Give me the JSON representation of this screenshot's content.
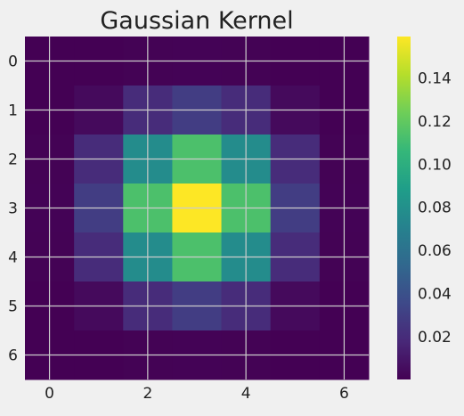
{
  "chart_data": {
    "type": "heatmap",
    "title": "Gaussian Kernel",
    "xlabel": "",
    "ylabel": "",
    "colormap": "viridis",
    "grid": true,
    "x_ticks": [
      "0",
      "2",
      "4",
      "6"
    ],
    "y_ticks": [
      "0",
      "1",
      "2",
      "3",
      "4",
      "5",
      "6"
    ],
    "xlim": [
      -0.5,
      6.5
    ],
    "ylim": [
      6.5,
      -0.5
    ],
    "colorbar": {
      "ticks": [
        "0.02",
        "0.04",
        "0.06",
        "0.08",
        "0.10",
        "0.12",
        "0.14"
      ],
      "tick_values": [
        0.02,
        0.04,
        0.06,
        0.08,
        0.1,
        0.12,
        0.14
      ],
      "range": [
        0.0001,
        0.1592
      ]
    },
    "values": [
      [
        0.0001,
        0.0003,
        0.0008,
        0.0011,
        0.0008,
        0.0003,
        0.0001
      ],
      [
        0.0003,
        0.0041,
        0.0199,
        0.029,
        0.0199,
        0.0041,
        0.0003
      ],
      [
        0.0008,
        0.0199,
        0.0771,
        0.1134,
        0.0771,
        0.0199,
        0.0008
      ],
      [
        0.0011,
        0.029,
        0.1134,
        0.1592,
        0.1134,
        0.029,
        0.0011
      ],
      [
        0.0008,
        0.0199,
        0.0771,
        0.1134,
        0.0771,
        0.0199,
        0.0008
      ],
      [
        0.0003,
        0.0041,
        0.0199,
        0.029,
        0.0199,
        0.0041,
        0.0003
      ],
      [
        0.0001,
        0.0003,
        0.0008,
        0.0011,
        0.0008,
        0.0003,
        0.0001
      ]
    ]
  },
  "colors": {
    "background": "#f0f0f0",
    "grid": "#cbcbcb",
    "text": "#222222"
  }
}
